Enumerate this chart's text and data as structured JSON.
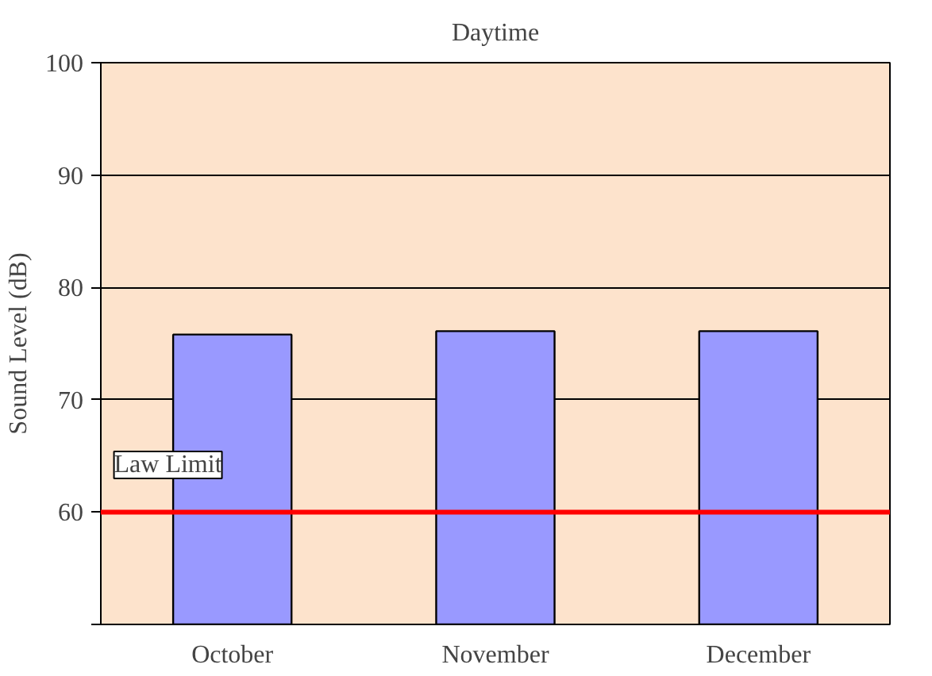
{
  "chart_data": {
    "type": "bar",
    "title": "Daytime",
    "ylabel": "Sound Level (dB)",
    "categories": [
      "October",
      "November",
      "December"
    ],
    "series": [
      {
        "color": "#9999ff",
        "values": [
          75.8,
          76.1,
          76.1
        ]
      }
    ],
    "ylim": [
      50,
      100
    ],
    "yticks": [
      {
        "value": 50,
        "label": null
      },
      60,
      70,
      80,
      90,
      100
    ],
    "grid": "y",
    "ref_lines": [
      {
        "axis": "y",
        "value": 60,
        "label": "Law Limit",
        "color": "#ff0000"
      }
    ]
  }
}
